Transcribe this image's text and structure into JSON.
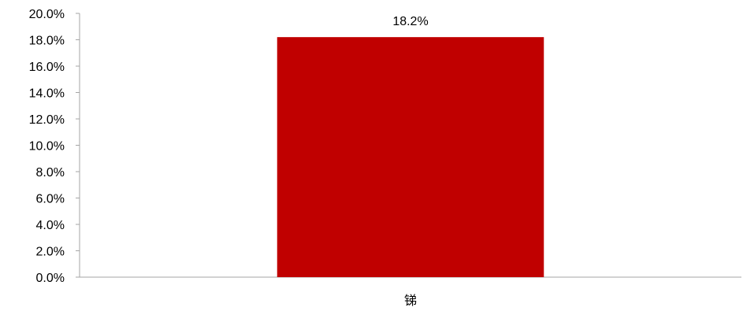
{
  "chart_data": {
    "type": "bar",
    "categories": [
      "锑"
    ],
    "values": [
      18.2
    ],
    "data_labels": [
      "18.2%"
    ],
    "ylim": [
      0,
      20
    ],
    "yticks": [
      "0.0%",
      "2.0%",
      "4.0%",
      "6.0%",
      "8.0%",
      "10.0%",
      "12.0%",
      "14.0%",
      "16.0%",
      "18.0%",
      "20.0%"
    ],
    "title": "",
    "xlabel": "",
    "ylabel": "",
    "grid": false,
    "legend": "none",
    "bar_color": "#c00000",
    "axis_color": "#a6a6a6"
  }
}
